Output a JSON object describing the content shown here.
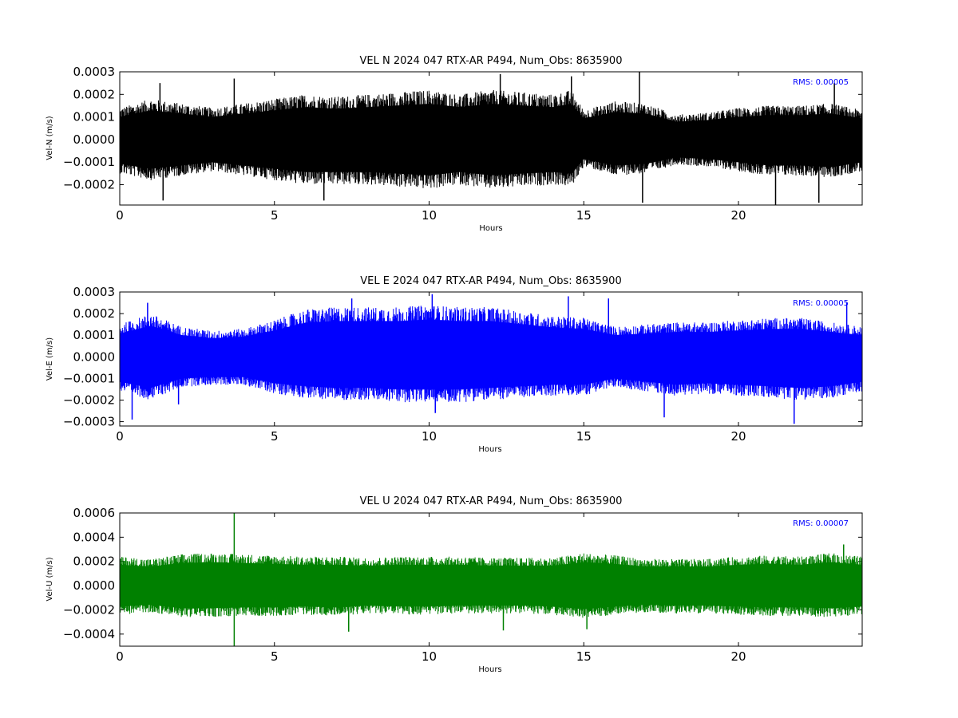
{
  "chart_data": [
    {
      "type": "line",
      "title": "VEL N 2024 047 RTX-AR  P494, Num_Obs: 8635900",
      "xlabel": "Hours",
      "ylabel": "Vel-N (m/s)",
      "rms_label": "RMS:  0.00005",
      "color": "#000000",
      "xlim": [
        0,
        24
      ],
      "ylim": [
        -0.00029,
        0.0003
      ],
      "x_ticks": [
        0,
        5,
        10,
        15,
        20
      ],
      "x_tick_labels": [
        "0",
        "5",
        "10",
        "15",
        "20"
      ],
      "y_ticks": [
        0.0003,
        0.0002,
        0.0001,
        0.0,
        -0.0001,
        -0.0002
      ],
      "y_tick_labels": [
        "0.0003",
        "0.0002",
        "0.0001",
        "0.0000",
        "−0.0001",
        "−0.0002"
      ],
      "grid": false,
      "series": [
        {
          "x": [
            0,
            1,
            2,
            3,
            4,
            5,
            6,
            7,
            8,
            9,
            10,
            11,
            12,
            13,
            14,
            14.6,
            15,
            16,
            17,
            18,
            19,
            20,
            21,
            22,
            23,
            24
          ],
          "upper": [
            0.00014,
            0.00018,
            0.00016,
            0.00014,
            0.00016,
            0.00018,
            0.0002,
            0.00019,
            0.0002,
            0.00021,
            0.00022,
            0.0002,
            0.00022,
            0.00021,
            0.0002,
            0.00022,
            0.00013,
            0.00017,
            0.00016,
            0.00011,
            0.00012,
            0.00014,
            0.00015,
            0.00015,
            0.00016,
            0.00013
          ],
          "lower": [
            -0.00015,
            -0.00018,
            -0.00016,
            -0.00014,
            -0.00016,
            -0.00018,
            -0.0002,
            -0.0002,
            -0.0002,
            -0.00021,
            -0.00022,
            -0.0002,
            -0.00022,
            -0.00021,
            -0.0002,
            -0.00021,
            -0.00012,
            -0.00016,
            -0.00015,
            -0.00011,
            -0.00012,
            -0.00014,
            -0.00016,
            -0.00016,
            -0.00017,
            -0.00014
          ],
          "spikes": [
            [
              1.3,
              0.00025
            ],
            [
              1.4,
              -0.00027
            ],
            [
              3.7,
              0.00027
            ],
            [
              6.6,
              -0.00027
            ],
            [
              12.3,
              0.00029
            ],
            [
              14.6,
              0.00028
            ],
            [
              16.8,
              0.0003
            ],
            [
              16.9,
              -0.00028
            ],
            [
              21.2,
              -0.00029
            ],
            [
              22.6,
              -0.00028
            ],
            [
              23.1,
              0.00025
            ]
          ]
        }
      ]
    },
    {
      "type": "line",
      "title": "VEL E 2024 047 RTX-AR  P494, Num_Obs: 8635900",
      "xlabel": "Hours",
      "ylabel": "Vel-E (m/s)",
      "rms_label": "RMS:  0.00005",
      "color": "#0000ff",
      "xlim": [
        0,
        24
      ],
      "ylim": [
        -0.00032,
        0.0003
      ],
      "x_ticks": [
        0,
        5,
        10,
        15,
        20
      ],
      "x_tick_labels": [
        "0",
        "5",
        "10",
        "15",
        "20"
      ],
      "y_ticks": [
        0.0003,
        0.0002,
        0.0001,
        0.0,
        -0.0001,
        -0.0002,
        -0.0003
      ],
      "y_tick_labels": [
        "0.0003",
        "0.0002",
        "0.0001",
        "0.0000",
        "−0.0001",
        "−0.0002",
        "−0.0003"
      ],
      "grid": false,
      "series": [
        {
          "x": [
            0,
            1,
            2,
            3,
            4,
            5,
            6,
            7,
            8,
            9,
            10,
            11,
            12,
            13,
            14,
            15,
            16,
            17,
            18,
            19,
            20,
            21,
            22,
            23,
            24
          ],
          "upper": [
            0.00015,
            0.0002,
            0.00014,
            0.00012,
            0.00013,
            0.00017,
            0.00022,
            0.00023,
            0.00023,
            0.00023,
            0.00024,
            0.00023,
            0.00023,
            0.00021,
            0.00019,
            0.00018,
            0.00014,
            0.00015,
            0.00016,
            0.00016,
            0.00017,
            0.00018,
            0.00018,
            0.00016,
            0.00014
          ],
          "lower": [
            -0.00016,
            -0.0002,
            -0.00014,
            -0.00013,
            -0.00013,
            -0.00017,
            -0.00019,
            -0.0002,
            -0.0002,
            -0.00021,
            -0.00021,
            -0.00021,
            -0.0002,
            -0.00019,
            -0.00018,
            -0.00018,
            -0.00014,
            -0.00016,
            -0.00018,
            -0.00017,
            -0.00018,
            -0.00019,
            -0.0002,
            -0.00019,
            -0.00016
          ],
          "spikes": [
            [
              0.4,
              -0.00029
            ],
            [
              0.9,
              0.00025
            ],
            [
              1.9,
              -0.00022
            ],
            [
              7.5,
              0.00027
            ],
            [
              10.1,
              0.00029
            ],
            [
              10.2,
              -0.00026
            ],
            [
              14.5,
              0.00028
            ],
            [
              15.8,
              0.00027
            ],
            [
              17.6,
              -0.00028
            ],
            [
              21.8,
              -0.00031
            ],
            [
              23.5,
              0.00025
            ]
          ]
        }
      ]
    },
    {
      "type": "line",
      "title": "VEL U 2024 047 RTX-AR  P494, Num_Obs: 8635900",
      "xlabel": "Hours",
      "ylabel": "Vel-U (m/s)",
      "rms_label": "RMS:  0.00007",
      "color": "#008000",
      "xlim": [
        0,
        24
      ],
      "ylim": [
        -0.0005,
        0.0006
      ],
      "x_ticks": [
        0,
        5,
        10,
        15,
        20
      ],
      "x_tick_labels": [
        "0",
        "5",
        "10",
        "15",
        "20"
      ],
      "y_ticks": [
        0.0006,
        0.0004,
        0.0002,
        0.0,
        -0.0002,
        -0.0004
      ],
      "y_tick_labels": [
        "0.0006",
        "0.0004",
        "0.0002",
        "0.0000",
        "−0.0002",
        "−0.0004"
      ],
      "grid": false,
      "series": [
        {
          "x": [
            0,
            1,
            2,
            3,
            4,
            5,
            6,
            7,
            8,
            9,
            10,
            11,
            12,
            13,
            14,
            15,
            16,
            17,
            18,
            19,
            20,
            21,
            22,
            23,
            24
          ],
          "upper": [
            0.00024,
            0.00022,
            0.00026,
            0.00027,
            0.00026,
            0.00025,
            0.00024,
            0.00024,
            0.00023,
            0.00024,
            0.00024,
            0.00024,
            0.00023,
            0.00023,
            0.00023,
            0.00027,
            0.00025,
            0.00022,
            0.00022,
            0.00022,
            0.00024,
            0.00025,
            0.00024,
            0.00027,
            0.00024
          ],
          "lower": [
            -0.00024,
            -0.00022,
            -0.00026,
            -0.00026,
            -0.00025,
            -0.00025,
            -0.00024,
            -0.00025,
            -0.00023,
            -0.00024,
            -0.00024,
            -0.00023,
            -0.00023,
            -0.00023,
            -0.00024,
            -0.00027,
            -0.00024,
            -0.00022,
            -0.00023,
            -0.00023,
            -0.00024,
            -0.00025,
            -0.00025,
            -0.00026,
            -0.00024
          ],
          "spikes": [
            [
              3.7,
              0.0006
            ],
            [
              3.7,
              -0.0005
            ],
            [
              7.4,
              -0.00038
            ],
            [
              12.4,
              -0.00037
            ],
            [
              15.1,
              -0.00036
            ],
            [
              23.4,
              0.00034
            ]
          ]
        }
      ]
    }
  ]
}
